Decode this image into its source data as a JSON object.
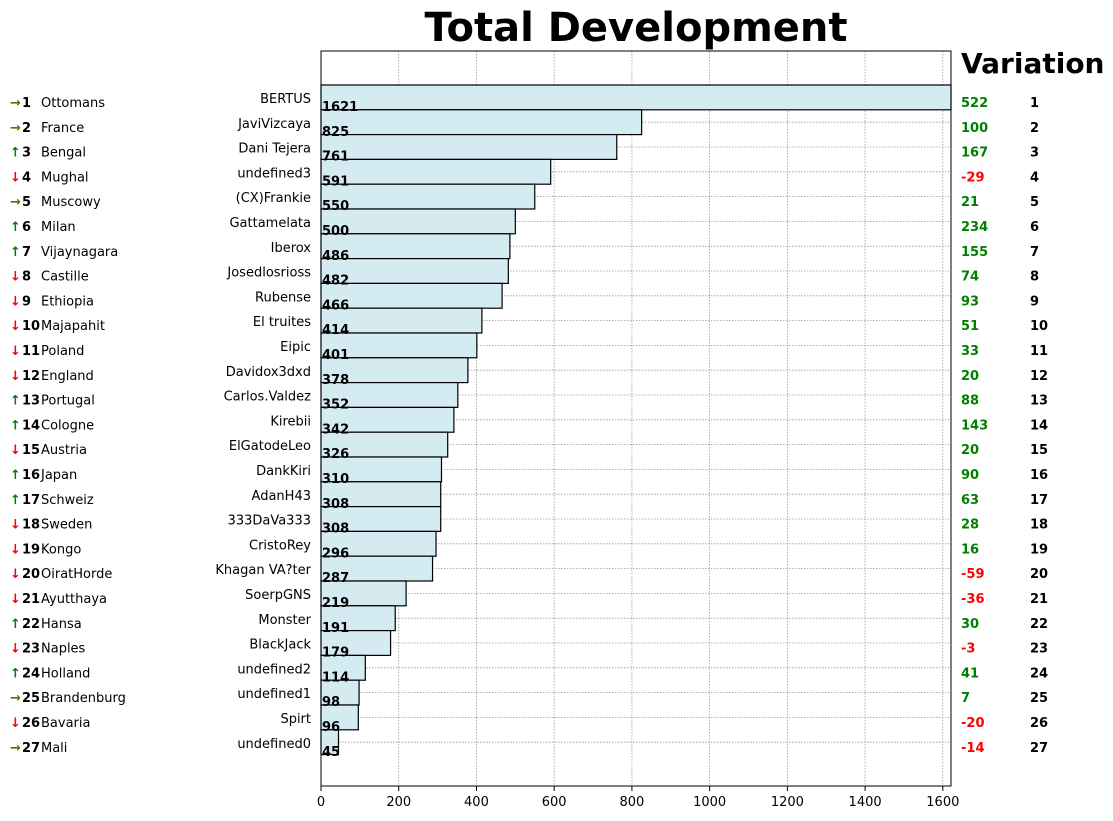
{
  "chart_data": {
    "type": "bar",
    "orientation": "horizontal",
    "title": "Total Development",
    "variation_title": "Variation",
    "xlim": [
      0,
      1621
    ],
    "xticks": [
      0,
      200,
      400,
      600,
      800,
      1000,
      1200,
      1400,
      1600
    ],
    "grid": true,
    "bar_color": "#d4ecf1",
    "colors": {
      "up": "#008000",
      "down": "#ff0000",
      "same": "#6b6b00"
    },
    "rows": [
      {
        "rank": 1,
        "trend": "→",
        "country": "Ottomans",
        "player": "BERTUS",
        "value": 1621,
        "variation": "522",
        "var_sign": "up"
      },
      {
        "rank": 2,
        "trend": "→",
        "country": "France",
        "player": "JaviVizcaya",
        "value": 825,
        "variation": "100",
        "var_sign": "up"
      },
      {
        "rank": 3,
        "trend": "↑",
        "country": "Bengal",
        "player": "Dani Tejera",
        "value": 761,
        "variation": "167",
        "var_sign": "up"
      },
      {
        "rank": 4,
        "trend": "↓",
        "country": "Mughal",
        "player": "undefined3",
        "value": 591,
        "variation": "-29",
        "var_sign": "down"
      },
      {
        "rank": 5,
        "trend": "→",
        "country": "Muscowy",
        "player": "(CX)Frankie",
        "value": 550,
        "variation": "21",
        "var_sign": "up"
      },
      {
        "rank": 6,
        "trend": "↑",
        "country": "Milan",
        "player": "Gattamelata",
        "value": 500,
        "variation": "234",
        "var_sign": "up"
      },
      {
        "rank": 7,
        "trend": "↑",
        "country": "Vijaynagara",
        "player": "Iberox",
        "value": 486,
        "variation": "155",
        "var_sign": "up"
      },
      {
        "rank": 8,
        "trend": "↓",
        "country": "Castille",
        "player": "Josedlosrioss",
        "value": 482,
        "variation": "74",
        "var_sign": "up"
      },
      {
        "rank": 9,
        "trend": "↓",
        "country": "Ethiopia",
        "player": "Rubense",
        "value": 466,
        "variation": "93",
        "var_sign": "up"
      },
      {
        "rank": 10,
        "trend": "↓",
        "country": "Majapahit",
        "player": "El truites",
        "value": 414,
        "variation": "51",
        "var_sign": "up"
      },
      {
        "rank": 11,
        "trend": "↓",
        "country": "Poland",
        "player": "Eipic",
        "value": 401,
        "variation": "33",
        "var_sign": "up"
      },
      {
        "rank": 12,
        "trend": "↓",
        "country": "England",
        "player": "Davidox3dxd",
        "value": 378,
        "variation": "20",
        "var_sign": "up"
      },
      {
        "rank": 13,
        "trend": "↑",
        "country": "Portugal",
        "player": "Carlos.Valdez",
        "value": 352,
        "variation": "88",
        "var_sign": "up"
      },
      {
        "rank": 14,
        "trend": "↑",
        "country": "Cologne",
        "player": "Kirebii",
        "value": 342,
        "variation": "143",
        "var_sign": "up"
      },
      {
        "rank": 15,
        "trend": "↓",
        "country": "Austria",
        "player": "ElGatodeLeo",
        "value": 326,
        "variation": "20",
        "var_sign": "up"
      },
      {
        "rank": 16,
        "trend": "↑",
        "country": "Japan",
        "player": "DankKiri",
        "value": 310,
        "variation": "90",
        "var_sign": "up"
      },
      {
        "rank": 17,
        "trend": "↑",
        "country": "Schweiz",
        "player": "AdanH43",
        "value": 308,
        "variation": "63",
        "var_sign": "up"
      },
      {
        "rank": 18,
        "trend": "↓",
        "country": "Sweden",
        "player": "333DaVa333",
        "value": 308,
        "variation": "28",
        "var_sign": "up"
      },
      {
        "rank": 19,
        "trend": "↓",
        "country": "Kongo",
        "player": "CristoRey",
        "value": 296,
        "variation": "16",
        "var_sign": "up"
      },
      {
        "rank": 20,
        "trend": "↓",
        "country": "OiratHorde",
        "player": "Khagan VA?ter",
        "value": 287,
        "variation": "-59",
        "var_sign": "down"
      },
      {
        "rank": 21,
        "trend": "↓",
        "country": "Ayutthaya",
        "player": "SoerpGNS",
        "value": 219,
        "variation": "-36",
        "var_sign": "down"
      },
      {
        "rank": 22,
        "trend": "↑",
        "country": "Hansa",
        "player": "Monster",
        "value": 191,
        "variation": "30",
        "var_sign": "up"
      },
      {
        "rank": 23,
        "trend": "↓",
        "country": "Naples",
        "player": "BlackJack",
        "value": 179,
        "variation": "-3",
        "var_sign": "down"
      },
      {
        "rank": 24,
        "trend": "↑",
        "country": "Holland",
        "player": "undefined2",
        "value": 114,
        "variation": "41",
        "var_sign": "up"
      },
      {
        "rank": 25,
        "trend": "→",
        "country": "Brandenburg",
        "player": "undefined1",
        "value": 98,
        "variation": "7",
        "var_sign": "up"
      },
      {
        "rank": 26,
        "trend": "↓",
        "country": "Bavaria",
        "player": "Spirt",
        "value": 96,
        "variation": "-20",
        "var_sign": "down"
      },
      {
        "rank": 27,
        "trend": "→",
        "country": "Mali",
        "player": "undefined0",
        "value": 45,
        "variation": "-14",
        "var_sign": "down"
      }
    ]
  }
}
